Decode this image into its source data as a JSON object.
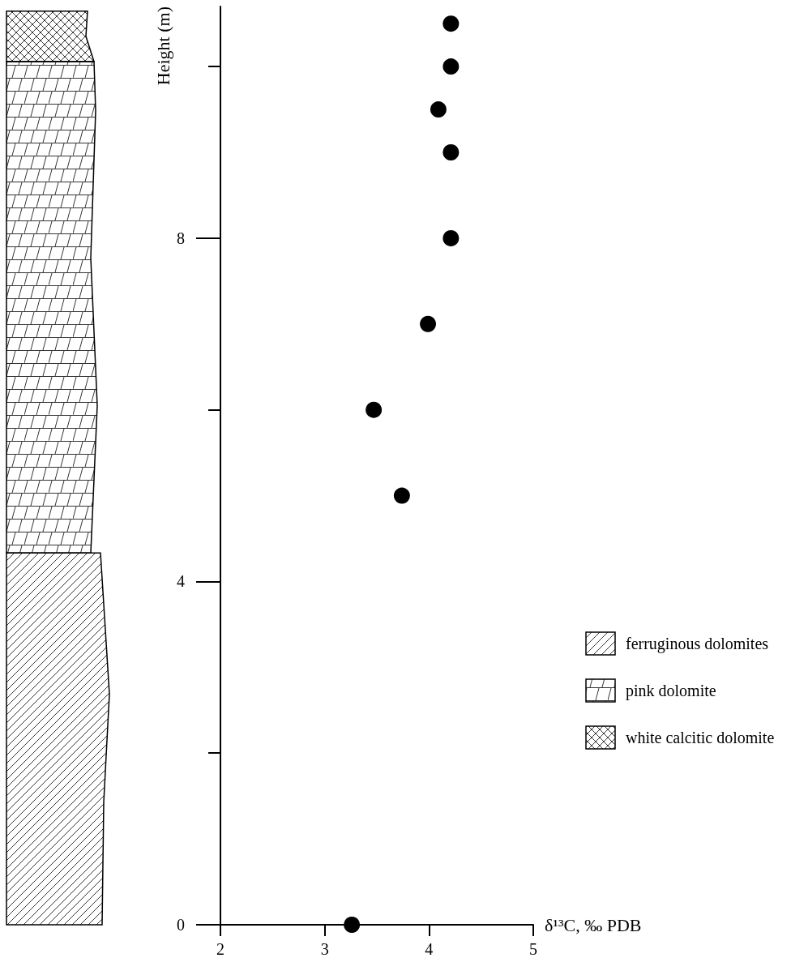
{
  "chart_data": {
    "type": "scatter",
    "xlabel": "δ¹³C, ‰ PDB",
    "ylabel": "Height (m)",
    "x": [
      3.26,
      3.74,
      3.47,
      3.99,
      4.21,
      4.21,
      4.09,
      4.21,
      4.21
    ],
    "series": [
      {
        "color": "#000000",
        "values": [
          0,
          5,
          6,
          7,
          8,
          9,
          9.5,
          10,
          10.5
        ]
      }
    ],
    "marker": "circle",
    "xlim": [
      2,
      5
    ],
    "xticks": [
      2,
      3,
      4,
      5
    ],
    "ylim": [
      0,
      10.7
    ],
    "yticks": [
      0,
      {
        "value": 2,
        "label": null
      },
      4,
      {
        "value": 6,
        "label": null
      },
      8,
      {
        "value": 10,
        "label": null
      }
    ],
    "grid": false,
    "annotations": [
      "ferruginous dolomites",
      "pink dolomite",
      "white calcitic dolomite"
    ]
  }
}
